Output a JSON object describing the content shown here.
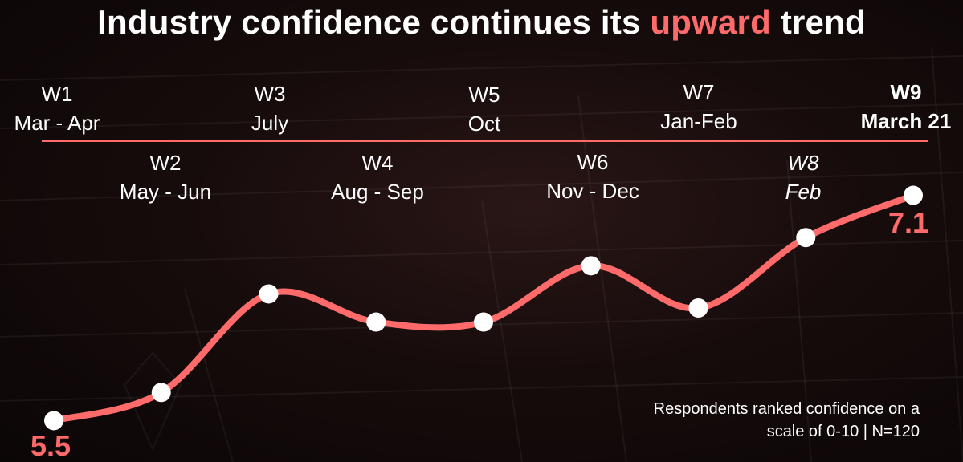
{
  "title": {
    "prefix": "Industry confidence continues its ",
    "highlight": "upward",
    "suffix": " trend"
  },
  "colors": {
    "accent": "#ff6b6b",
    "line": "#ff6b6b",
    "marker": "#ffffff",
    "text": "#ffffff"
  },
  "chart_data": {
    "type": "line",
    "categories": [
      {
        "wave": "W1",
        "period": "Mar - Apr"
      },
      {
        "wave": "W2",
        "period": "May - Jun"
      },
      {
        "wave": "W3",
        "period": "July"
      },
      {
        "wave": "W4",
        "period": "Aug - Sep"
      },
      {
        "wave": "W5",
        "period": "Oct"
      },
      {
        "wave": "W6",
        "period": "Nov - Dec"
      },
      {
        "wave": "W7",
        "period": "Jan-Feb"
      },
      {
        "wave": "W8",
        "period": "Feb"
      },
      {
        "wave": "W9",
        "period": "March 21"
      }
    ],
    "values": [
      5.5,
      5.7,
      6.4,
      6.2,
      6.2,
      6.6,
      6.3,
      6.8,
      7.1
    ],
    "labeled_values": {
      "first": "5.5",
      "last": "7.1"
    },
    "ylim": [
      5.4,
      7.2
    ],
    "grid": false,
    "legend": "none"
  },
  "note": {
    "line1": "Respondents ranked confidence on a",
    "line2": "scale of 0-10 | N=120"
  }
}
